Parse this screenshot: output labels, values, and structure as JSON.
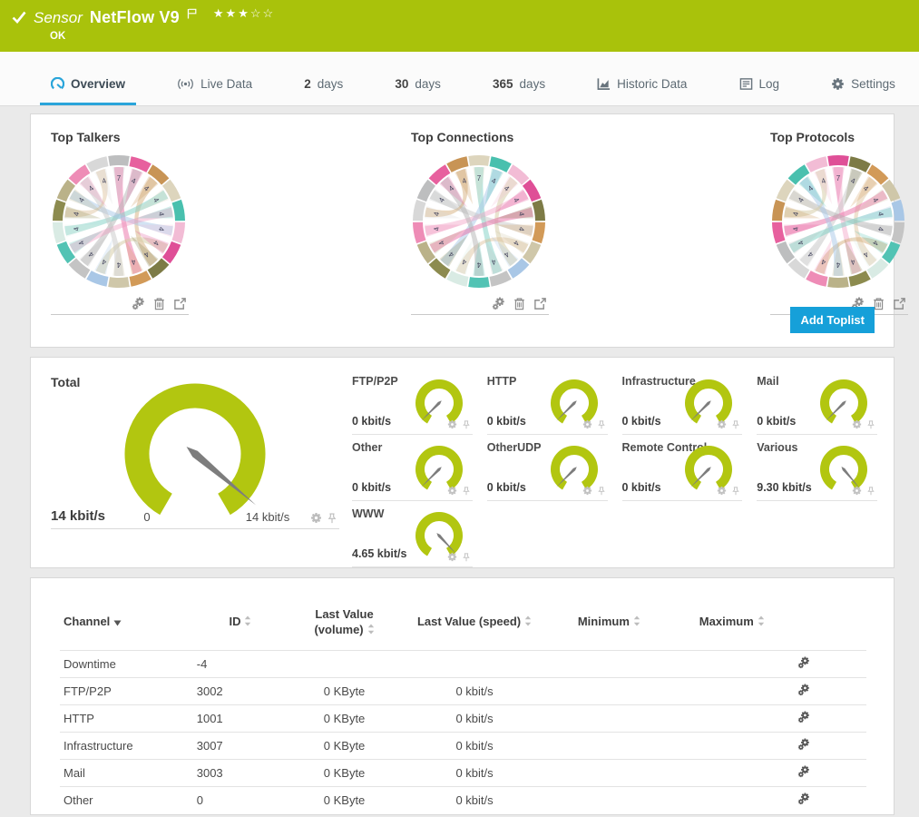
{
  "header": {
    "kind_label": "Sensor",
    "title": "NetFlow V9",
    "status": "OK",
    "rating": {
      "filled": 3,
      "total": 5
    }
  },
  "tabs": [
    {
      "label": "Overview",
      "icon": "speedometer-icon",
      "active": true
    },
    {
      "label": "Live Data",
      "icon": "broadcast-icon"
    },
    {
      "bold": "2",
      "label": "days"
    },
    {
      "bold": "30",
      "label": "days"
    },
    {
      "bold": "365",
      "label": "days"
    },
    {
      "label": "Historic Data",
      "icon": "chart-icon"
    },
    {
      "label": "Log",
      "icon": "log-icon"
    },
    {
      "label": "Settings",
      "icon": "gear-icon"
    }
  ],
  "toplists": {
    "add_button_label": "Add Toplist",
    "action_icons": [
      "settings-gears-icon",
      "trash-icon",
      "open-external-icon"
    ]
  },
  "chart_data": {
    "toplists": [
      {
        "type": "chord",
        "title": "Top Talkers",
        "segment_labels": [
          "7",
          "4",
          "4",
          "4",
          "4",
          "4",
          "4",
          "4",
          "4",
          "4",
          "4",
          "4",
          "4",
          "4",
          "4",
          "4",
          "4",
          "4"
        ]
      },
      {
        "type": "chord",
        "title": "Top Connections",
        "segment_labels": [
          "7",
          "4",
          "4",
          "4",
          "4",
          "4",
          "4",
          "4",
          "4",
          "4",
          "4",
          "4",
          "4",
          "4",
          "4",
          "4",
          "4",
          "4"
        ]
      },
      {
        "type": "chord",
        "title": "Top Protocols",
        "segment_labels": [
          "7",
          "4",
          "4",
          "4",
          "4",
          "4",
          "4",
          "4",
          "4",
          "4",
          "4",
          "4",
          "4",
          "4",
          "4",
          "4",
          "4",
          "4"
        ]
      }
    ],
    "total_gauge": {
      "type": "gauge",
      "title": "Total",
      "value_label": "14 kbit/s",
      "axis_min_label": "0",
      "axis_max_label": "14 kbit/s",
      "needle_deg": -40
    },
    "channel_gauges": [
      {
        "type": "gauge",
        "title": "FTP/P2P",
        "value_label": "0 kbit/s",
        "needle_deg": 225
      },
      {
        "type": "gauge",
        "title": "HTTP",
        "value_label": "0 kbit/s",
        "needle_deg": 225
      },
      {
        "type": "gauge",
        "title": "Infrastructure",
        "value_label": "0 kbit/s",
        "needle_deg": 225
      },
      {
        "type": "gauge",
        "title": "Mail",
        "value_label": "0 kbit/s",
        "needle_deg": 225
      },
      {
        "type": "gauge",
        "title": "Other",
        "value_label": "0 kbit/s",
        "needle_deg": 225
      },
      {
        "type": "gauge",
        "title": "OtherUDP",
        "value_label": "0 kbit/s",
        "needle_deg": 225
      },
      {
        "type": "gauge",
        "title": "Remote Control",
        "value_label": "0 kbit/s",
        "needle_deg": 225
      },
      {
        "type": "gauge",
        "title": "Various",
        "value_label": "9.30 kbit/s",
        "needle_deg": -50
      },
      {
        "type": "gauge",
        "title": "WWW",
        "value_label": "4.65 kbit/s",
        "needle_deg": -47
      }
    ]
  },
  "table": {
    "columns": [
      {
        "label": "Channel",
        "sorted": true
      },
      {
        "label": "ID"
      },
      {
        "label": "Last Value (volume)"
      },
      {
        "label": "Last Value (speed)"
      },
      {
        "label": "Minimum"
      },
      {
        "label": "Maximum"
      }
    ],
    "rows": [
      {
        "channel": "Downtime",
        "id": "-4",
        "volume": "",
        "speed": "",
        "min": "",
        "max": ""
      },
      {
        "channel": "FTP/P2P",
        "id": "3002",
        "volume": "0 KByte",
        "speed": "0 kbit/s",
        "min": "",
        "max": ""
      },
      {
        "channel": "HTTP",
        "id": "1001",
        "volume": "0 KByte",
        "speed": "0 kbit/s",
        "min": "",
        "max": ""
      },
      {
        "channel": "Infrastructure",
        "id": "3007",
        "volume": "0 KByte",
        "speed": "0 kbit/s",
        "min": "",
        "max": ""
      },
      {
        "channel": "Mail",
        "id": "3003",
        "volume": "0 KByte",
        "speed": "0 kbit/s",
        "min": "",
        "max": ""
      },
      {
        "channel": "Other",
        "id": "0",
        "volume": "0 KByte",
        "speed": "0 kbit/s",
        "min": "",
        "max": ""
      }
    ]
  },
  "colors": {
    "header_green": "#a9c20b",
    "accent_blue": "#16a0d9",
    "gauge_green": "#b2c610",
    "needle_gray": "#7d7d7d",
    "chord_palette": [
      "#bdbebf",
      "#e7609e",
      "#c89455",
      "#ddd5bd",
      "#49c0ae",
      "#f2bcd5",
      "#df4f97",
      "#7d7b46",
      "#d29a58",
      "#cfc7a9",
      "#a9c7e6",
      "#c4c4c4",
      "#52c3b4",
      "#d9ebe4",
      "#8c8b4f",
      "#bab289",
      "#ee8cb6",
      "#d8d8d8"
    ]
  }
}
